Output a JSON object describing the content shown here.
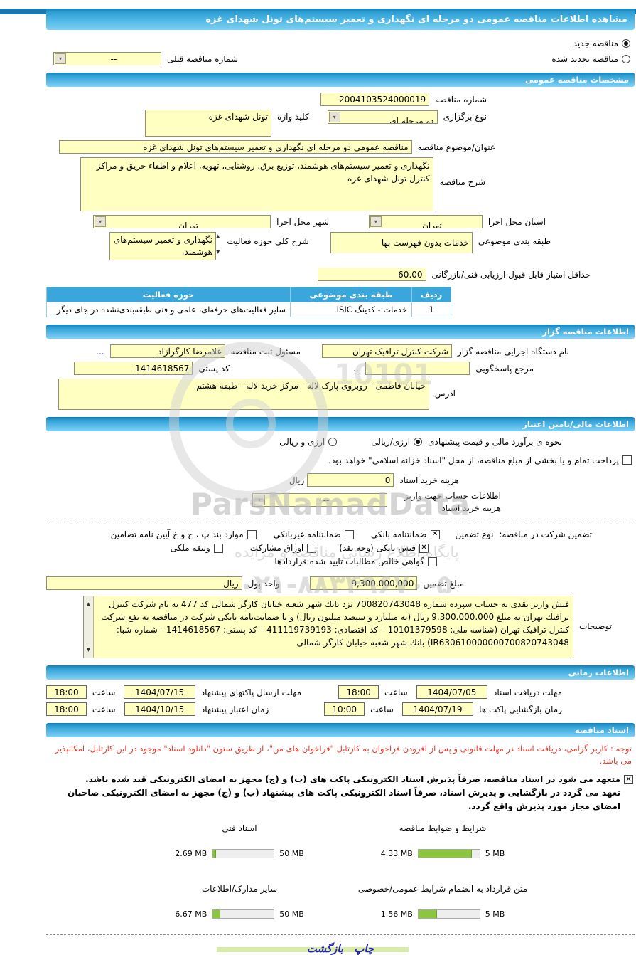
{
  "header": {
    "title": "مشاهده اطلاعات مناقصه عمومی دو مرحله ای نگهداری و تعمیر سیستم‌های تونل شهدای غزه"
  },
  "top": {
    "new_label": "مناقصه جدید",
    "new_selected": true,
    "renewed_label": "مناقصه تجدید شده",
    "renewed_selected": false,
    "prev_label": "شماره مناقصه قبلی",
    "prev_value": "--"
  },
  "general": {
    "bar": "مشخصات مناقصه عمومی",
    "number_label": "شماره مناقصه",
    "number": "2004103524000019",
    "type_label": "نوع برگزاری",
    "type_value": "دو مرحله ای",
    "keyword_label": "کلید واژه",
    "keyword": "تونل شهدای غزه",
    "title_label": "عنوان/موضوع مناقصه",
    "title": "مناقصه عمومی دو مرحله ای نگهداری و تعمیر سیستم‌های تونل شهدای غزه",
    "desc_label": "شرح مناقصه",
    "desc": "نگهداری و تعمیر سیستم‌های هوشمند، توزیع برق، روشنایی، تهویه، اعلام و اطفاء حریق و مراکز کنترل تونل شهدای غزه",
    "province_label": "استان محل اجرا",
    "province": "تهران",
    "city_label": "شهر محل اجرا",
    "city": "تهران",
    "category_label": "طبقه بندی موضوعی",
    "category": "خدمات بدون فهرست بها",
    "activity_label": "شرح کلی حوزه فعالیت",
    "activity": "نگهداری و تعمیر سیستم‌های هوشمند،",
    "score_label": "حداقل امتیاز قابل قبول ارزیابی فنی/بازرگانی",
    "score": "60.00",
    "table": {
      "headers": [
        "ردیف",
        "طبقه بندی موضوعی",
        "حوزه فعالیت"
      ],
      "rows": [
        [
          "1",
          "خدمات - کدینگ ISIC",
          "سایر فعالیت‌های حرفه‌ای، علمی و فنی طبقه‌بندی‌نشده در جای دیگر"
        ]
      ]
    }
  },
  "agency": {
    "bar": "اطلاعات مناقصه گزار",
    "org_label": "نام دستگاه اجرایی مناقصه گزار",
    "org": "شرکت کنترل ترافیک تهران",
    "registrar_label": "مسئول ثبت مناقصه",
    "registrar": "غلامرضا کارگرآزاد",
    "registrar_more": "...",
    "ref_label": "مرجع پاسخگویی",
    "ref": "",
    "ref_more": "...",
    "postal_label": "کد پستی",
    "postal": "1414618567",
    "address_label": "آدرس",
    "address": "خیابان فاطمی - روبروی پارک لاله - مرکز خرید لاله - طبقه هشتم"
  },
  "financial": {
    "bar": "اطلاعات مالی/تامین اعتبار",
    "estimate_label": "نحوه ی برآورد مالی و قیمت پیشنهادی",
    "estimate_opt1": "ارزی/ریالی",
    "estimate_opt1_selected": true,
    "estimate_opt2": "ارزی و ریالی",
    "estimate_opt2_selected": false,
    "treasury_checked": false,
    "treasury_note": "پرداخت تمام و یا بخشی از مبلغ مناقصه، از محل \"اسناد خزانه اسلامی\" خواهد بود.",
    "fee_label": "هزینه خرید اسناد",
    "fee": "0",
    "fee_unit": "ریال",
    "account_label": "اطلاعات حساب جهت واریز هزینه خرید اسناد",
    "account": "--",
    "guarantee_label": "تضمین شرکت در مناقصه:",
    "guarantee_type_label": "نوع تضمین",
    "guarantee_options": [
      {
        "label": "ضمانتنامه بانکی",
        "checked": true
      },
      {
        "label": "ضمانتنامه غیربانکی",
        "checked": false
      },
      {
        "label": "موارد بند پ ، ح و خ آیین نامه تضامین",
        "checked": false
      },
      {
        "label": "فیش بانکی (وجه نقد)",
        "checked": true
      },
      {
        "label": "اوراق مشارکت",
        "checked": false
      },
      {
        "label": "وثیقه ملکی",
        "checked": false
      },
      {
        "label": "گواهی خالص مطالبات تایید شده قراردادها",
        "checked": false
      }
    ],
    "amount_label": "مبلغ تضمین",
    "amount": "9,300,000,000",
    "currency_label": "واحد پول",
    "currency": "ریال",
    "notes_label": "توضیحات",
    "notes": "فیش واریز نقدی به حساب سپرده شماره 700820743048 نزد بانك شهر شعبه خیابان کارگر شمالی کد 477 به نام شرکت کنترل ترافیك تهران به مبلغ 9.300.000.000 ریال (نه میلیارد و سیصد میلیون ریال) و یا ضمانت‌نامه بانکی شرکت در مناقصه به نفع شرکت کنترل ترافیک تهران (شناسه ملی: 10101379598 – کد اقتصادی: 411119739193 – کد پستی: 1414618567 - شماره شبا: IR630610000000700820743048) بانك شهر شعبه خیابان كارگر شمالی"
  },
  "times": {
    "bar": "اطلاعات زمانی",
    "hour_label": "ساعت",
    "receive_label": "مهلت دریافت اسناد",
    "receive_date": "1404/07/05",
    "receive_time": "18:00",
    "submit_label": "مهلت ارسال پاکتهای پیشنهاد",
    "submit_date": "1404/07/15",
    "submit_time": "18:00",
    "open_label": "زمان بازگشایی پاکت ها",
    "open_date": "1404/07/19",
    "open_time": "10:00",
    "validity_label": "زمان اعتبار پیشنهاد",
    "validity_date": "1404/10/15",
    "validity_time": "18:00"
  },
  "docs": {
    "bar": "اسناد مناقصه",
    "note": "توجه : کاربر گرامی، دریافت اسناد در مهلت قانونی و پس از افزودن فراخوان به کارتابل \"فراخوان های من\"، از طریق ستون \"دانلود اسناد\" موجود در این کارتابل، امکانپذیر می باشد.",
    "commitment_checked": true,
    "commitment1": "متعهد می شود در اسناد مناقصه، صرفاً پذیرش اسناد الکترونیکی پاکت های (ب) و (ج) مجهز به امضای الکترونیکی قید شده باشد.",
    "commitment2": "تعهد می گردد در بازگشایی و پذیرش اسناد، صرفاً اسناد الکترونیکی پاکت های پیشنهاد (ب) و (ج) مجهز به امضای الکترونیکی صاحبان امضای مجاز مورد پذیرش واقع گردد.",
    "files": [
      {
        "label": "شرایط و ضوابط مناقصه",
        "size": "4.33 MB",
        "max": "5 MB",
        "pct": 87
      },
      {
        "label": "اسناد فنی",
        "size": "2.69 MB",
        "max": "50 MB",
        "pct": 5
      },
      {
        "label": "متن قرارداد به انضمام شرایط عمومی/خصوصی",
        "size": "1.56 MB",
        "max": "5 MB",
        "pct": 31
      },
      {
        "label": "سایر مدارک/اطلاعات",
        "size": "6.67 MB",
        "max": "50 MB",
        "pct": 13
      }
    ]
  },
  "footer": {
    "print": "چاپ",
    "back": "بازگشت"
  },
  "watermark": {
    "brand": "ParsNamadData",
    "tagline": "پایگاه اطلاع رسانی مناقصه و مزایده",
    "phone": "۰۲۱-۸۸۳۴۹۶۷۰-۵",
    "digits": "10101"
  },
  "colors": {
    "accent_blue": "#3FACDF",
    "input_yellow": "#FFFFC2",
    "progress_green": "#8CC63F",
    "note_red": "#E03C2F",
    "link_blue": "#2424A8",
    "top_strip": "#1879B0"
  }
}
